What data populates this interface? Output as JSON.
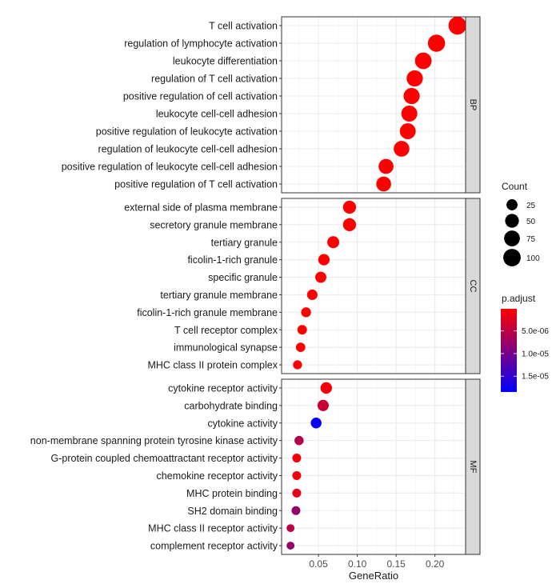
{
  "chart_data": {
    "type": "scatter",
    "title": "",
    "xlabel": "GeneRatio",
    "ylabel": "",
    "xlim": [
      0.0025,
      0.2395
    ],
    "x_ticks": [
      0.05,
      0.1,
      0.15,
      0.2
    ],
    "x_tick_labels": [
      "0.05",
      "0.10",
      "0.15",
      "0.20"
    ],
    "grid": true,
    "legend_position": "right",
    "facets": [
      {
        "name": "BP",
        "points": [
          {
            "term": "T cell activation",
            "gene_ratio": 0.229,
            "count": 107,
            "p_adjust": 1e-07
          },
          {
            "term": "regulation of lymphocyte activation",
            "gene_ratio": 0.202,
            "count": 95,
            "p_adjust": 1e-07
          },
          {
            "term": "leukocyte differentiation",
            "gene_ratio": 0.185,
            "count": 87,
            "p_adjust": 1e-07
          },
          {
            "term": "regulation of T cell activation",
            "gene_ratio": 0.174,
            "count": 82,
            "p_adjust": 1e-07
          },
          {
            "term": "positive regulation of cell activation",
            "gene_ratio": 0.17,
            "count": 80,
            "p_adjust": 1e-07
          },
          {
            "term": "leukocyte cell-cell adhesion",
            "gene_ratio": 0.167,
            "count": 78,
            "p_adjust": 1e-07
          },
          {
            "term": "positive regulation of leukocyte activation",
            "gene_ratio": 0.165,
            "count": 77,
            "p_adjust": 1e-07
          },
          {
            "term": "regulation of leukocyte cell-cell adhesion",
            "gene_ratio": 0.157,
            "count": 74,
            "p_adjust": 1e-07
          },
          {
            "term": "positive regulation of leukocyte cell-cell adhesion",
            "gene_ratio": 0.137,
            "count": 64,
            "p_adjust": 1e-07
          },
          {
            "term": "positive regulation of T cell activation",
            "gene_ratio": 0.134,
            "count": 63,
            "p_adjust": 1e-07
          }
        ]
      },
      {
        "name": "CC",
        "points": [
          {
            "term": "external side of plasma membrane",
            "gene_ratio": 0.09,
            "count": 42,
            "p_adjust": 1e-07
          },
          {
            "term": "secretory granule membrane",
            "gene_ratio": 0.09,
            "count": 42,
            "p_adjust": 1e-07
          },
          {
            "term": "tertiary granule",
            "gene_ratio": 0.069,
            "count": 32,
            "p_adjust": 1e-07
          },
          {
            "term": "ficolin-1-rich granule",
            "gene_ratio": 0.057,
            "count": 27,
            "p_adjust": 1e-07
          },
          {
            "term": "specific granule",
            "gene_ratio": 0.053,
            "count": 25,
            "p_adjust": 1e-07
          },
          {
            "term": "tertiary granule membrane",
            "gene_ratio": 0.042,
            "count": 20,
            "p_adjust": 1e-07
          },
          {
            "term": "ficolin-1-rich granule membrane",
            "gene_ratio": 0.034,
            "count": 16,
            "p_adjust": 1e-07
          },
          {
            "term": "T cell receptor complex",
            "gene_ratio": 0.029,
            "count": 14,
            "p_adjust": 1e-07
          },
          {
            "term": "immunological synapse",
            "gene_ratio": 0.027,
            "count": 13,
            "p_adjust": 1e-07
          },
          {
            "term": "MHC class II protein complex",
            "gene_ratio": 0.023,
            "count": 11,
            "p_adjust": 1e-07
          }
        ]
      },
      {
        "name": "MF",
        "points": [
          {
            "term": "cytokine receptor activity",
            "gene_ratio": 0.06,
            "count": 28,
            "p_adjust": 1e-06
          },
          {
            "term": "carbohydrate binding",
            "gene_ratio": 0.056,
            "count": 26,
            "p_adjust": 4e-06
          },
          {
            "term": "cytokine activity",
            "gene_ratio": 0.047,
            "count": 22,
            "p_adjust": 1.8e-05
          },
          {
            "term": "non-membrane spanning protein tyrosine kinase activity",
            "gene_ratio": 0.025,
            "count": 12,
            "p_adjust": 5.5e-06
          },
          {
            "term": "G-protein coupled chemoattractant receptor activity",
            "gene_ratio": 0.022,
            "count": 10,
            "p_adjust": 1e-06
          },
          {
            "term": "chemokine receptor activity",
            "gene_ratio": 0.022,
            "count": 10,
            "p_adjust": 1e-06
          },
          {
            "term": "MHC protein binding",
            "gene_ratio": 0.022,
            "count": 10,
            "p_adjust": 2e-06
          },
          {
            "term": "SH2 domain binding",
            "gene_ratio": 0.021,
            "count": 10,
            "p_adjust": 8e-06
          },
          {
            "term": "MHC class II receptor activity",
            "gene_ratio": 0.014,
            "count": 6,
            "p_adjust": 5e-06
          },
          {
            "term": "complement receptor activity",
            "gene_ratio": 0.014,
            "count": 6,
            "p_adjust": 7.5e-06
          }
        ]
      }
    ],
    "size_legend": {
      "title": "Count",
      "breaks": [
        25,
        50,
        75,
        100
      ],
      "labels": [
        "25",
        "50",
        "75",
        "100"
      ]
    },
    "color_legend": {
      "title": "p.adjust",
      "low_color": "#FF0000",
      "high_color": "#0000FF",
      "range": [
        1e-07,
        1.85e-05
      ],
      "breaks": [
        5e-06,
        1e-05,
        1.5e-05
      ],
      "labels": [
        "5.0e-06",
        "1.0e-05",
        "1.5e-05"
      ]
    }
  }
}
